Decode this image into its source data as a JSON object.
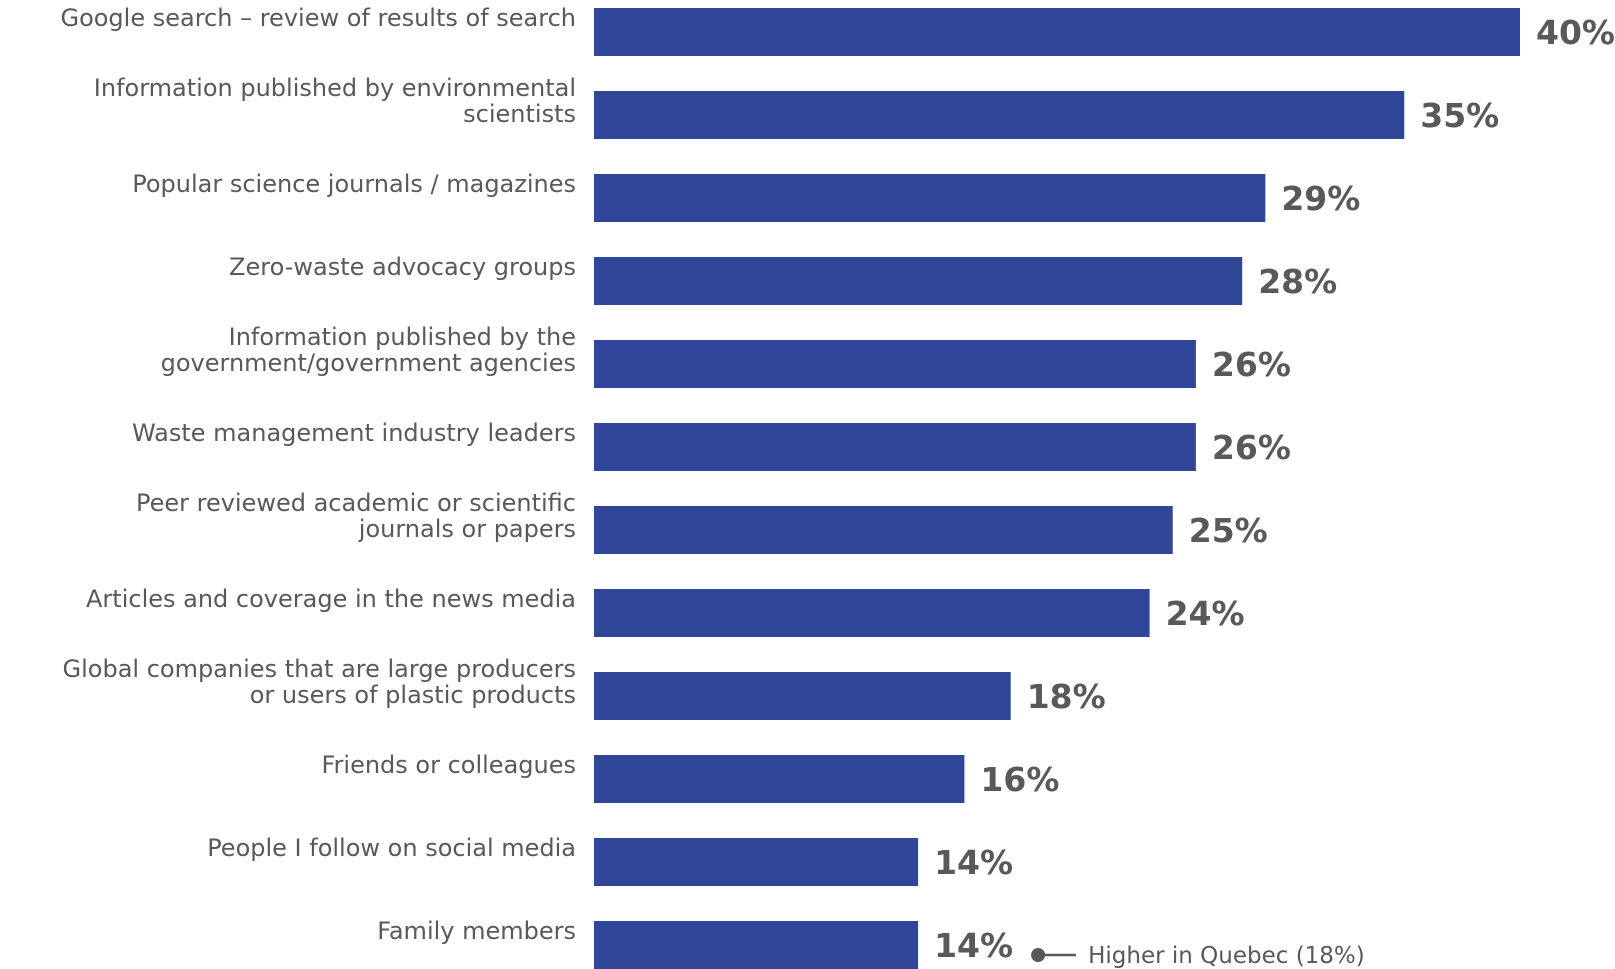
{
  "chart_data": {
    "type": "bar",
    "orientation": "horizontal",
    "bar_color": "#2f4699",
    "text_color": "#595959",
    "categories": [
      [
        "Google search – review of results of search"
      ],
      [
        "Information published by environmental",
        "scientists"
      ],
      [
        "Popular science journals / magazines"
      ],
      [
        "Zero-waste advocacy groups"
      ],
      [
        "Information published by the",
        "government/government agencies"
      ],
      [
        "Waste management industry leaders"
      ],
      [
        "Peer reviewed academic or scientific",
        "journals or papers"
      ],
      [
        "Articles and coverage in the news media"
      ],
      [
        "Global companies that are large producers",
        "or users of plastic products"
      ],
      [
        "Friends or colleagues"
      ],
      [
        "People I follow on social media"
      ],
      [
        "Family members"
      ]
    ],
    "values": [
      40,
      35,
      29,
      28,
      26,
      26,
      25,
      24,
      18,
      16,
      14,
      14
    ],
    "value_labels": [
      "40%",
      "35%",
      "29%",
      "28%",
      "26%",
      "26%",
      "25%",
      "24%",
      "18%",
      "16%",
      "14%",
      "14%"
    ],
    "xlim": [
      0,
      40
    ],
    "grid": false,
    "legend": "none",
    "annotation": {
      "category_index": 11,
      "text": "Higher in Quebec (18%)"
    }
  }
}
